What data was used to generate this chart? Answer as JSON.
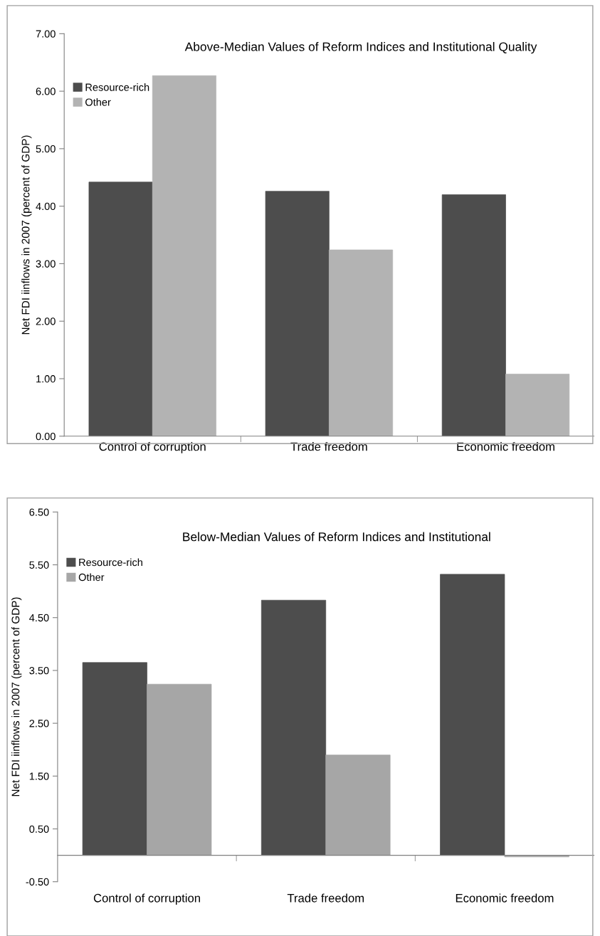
{
  "chart_data": [
    {
      "type": "bar",
      "title": "Above-Median Values of Reform Indices and Institutional Quality",
      "ylabel": "Net FDI iinflows in 2007 (percent of GDP)",
      "categories": [
        "Control of corruption",
        "Trade freedom",
        "Economic freedom"
      ],
      "series": [
        {
          "name": "Resource-rich",
          "color": "#4d4d4d",
          "values": [
            4.42,
            4.26,
            4.2
          ]
        },
        {
          "name": "Other",
          "color": "#b3b3b3",
          "values": [
            6.27,
            3.24,
            1.08
          ]
        }
      ],
      "ylim": [
        0,
        7
      ],
      "yticks": [
        {
          "value": 0,
          "label": "0.00"
        },
        {
          "value": 1,
          "label": "1.00"
        },
        {
          "value": 2,
          "label": "2.00"
        },
        {
          "value": 3,
          "label": "3.00"
        },
        {
          "value": 4,
          "label": "4.00"
        },
        {
          "value": 5,
          "label": "5.00"
        },
        {
          "value": 6,
          "label": "6.00"
        },
        {
          "value": 7,
          "label": "7.00"
        }
      ],
      "legend": "top left",
      "grid": false
    },
    {
      "type": "bar",
      "title": "Below-Median Values of Reform Indices and Institutional",
      "ylabel": "Net FDI iinflows in 2007 (percent of GDP)",
      "categories": [
        "Control of corruption",
        "Trade freedom",
        "Economic freedom"
      ],
      "series": [
        {
          "name": "Resource-rich",
          "color": "#4d4d4d",
          "values": [
            3.65,
            4.83,
            5.32
          ]
        },
        {
          "name": "Other",
          "color": "#a6a6a6",
          "values": [
            3.24,
            1.9,
            -0.03
          ]
        }
      ],
      "ylim": [
        -0.5,
        6.5
      ],
      "yticks": [
        {
          "value": -0.5,
          "label": "-0.50"
        },
        {
          "value": 0.5,
          "label": "0.50"
        },
        {
          "value": 1.5,
          "label": "1.50"
        },
        {
          "value": 2.5,
          "label": "2.50"
        },
        {
          "value": 3.5,
          "label": "3.50"
        },
        {
          "value": 4.5,
          "label": "4.50"
        },
        {
          "value": 5.5,
          "label": "5.50"
        },
        {
          "value": 6.5,
          "label": "6.50"
        }
      ],
      "legend": "top left",
      "grid": false
    }
  ]
}
